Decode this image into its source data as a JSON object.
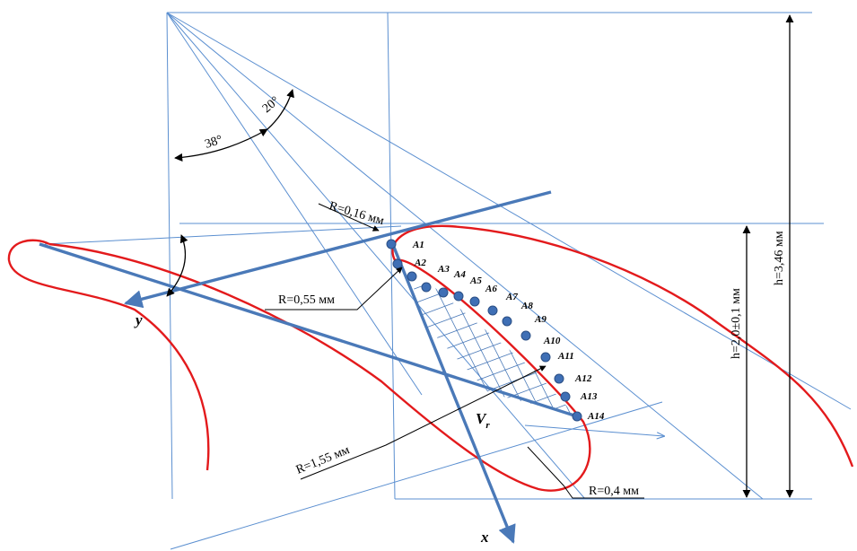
{
  "angles": {
    "a": "38°",
    "b": "20°"
  },
  "radii": {
    "r1": "R=0,16 мм",
    "r2": "R=0,55 мм",
    "r3": "R=1,55 мм",
    "r4": "R=0,4 мм"
  },
  "dims": {
    "h_inner": "h=2,0±0,1 мм",
    "h_outer": "h=3,46 мм"
  },
  "axes": {
    "x": "x",
    "y": "y",
    "v": "V",
    "v_sub": "r"
  },
  "points": [
    "A1",
    "A2",
    "A3",
    "A4",
    "A5",
    "A6",
    "A7",
    "A8",
    "A9",
    "A10",
    "A11",
    "A12",
    "A13",
    "A14"
  ],
  "colors": {
    "construction": "#5b8fd0",
    "axis": "#4a79b8",
    "profile": "#e31a1c",
    "dots": "#3f6fb5"
  }
}
